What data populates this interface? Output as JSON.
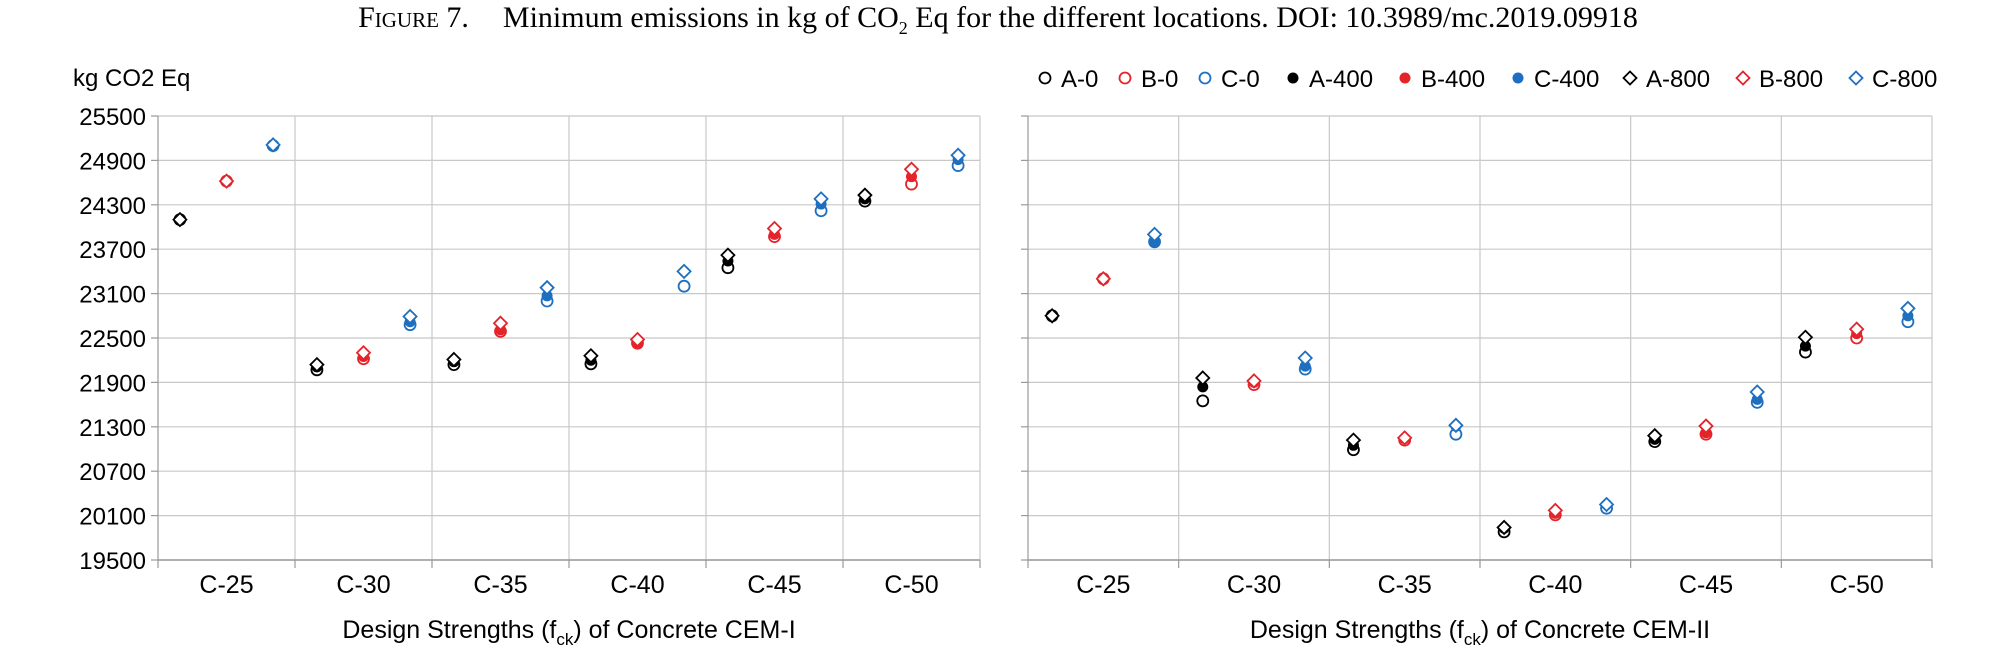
{
  "caption": {
    "label": "Figure 7.",
    "text_before_sub": "Minimum emissions in kg of CO",
    "sub": "2",
    "text_after_sub": " Eq for the different locations. DOI: 10.3989/mc.2019.09918"
  },
  "chart_data": [
    {
      "type": "scatter",
      "panel": "CEM-I",
      "ylabel": "kg CO2 Eq",
      "xlabel_prefix": "Design Strengths (f",
      "xlabel_sub": "ck",
      "xlabel_suffix": ") of Concrete CEM-I",
      "ylim": [
        19500,
        25500
      ],
      "yticks": [
        19500,
        20100,
        20700,
        21300,
        21900,
        22500,
        23100,
        23700,
        24300,
        24900,
        25500
      ],
      "grid": true,
      "categories": [
        "C-25",
        "C-30",
        "C-35",
        "C-40",
        "C-45",
        "C-50"
      ],
      "series": [
        {
          "name": "A-0",
          "values": [
            24100,
            22070,
            22140,
            22150,
            23450,
            24350
          ]
        },
        {
          "name": "B-0",
          "values": [
            24620,
            22220,
            22590,
            22430,
            23870,
            24580
          ]
        },
        {
          "name": "C-0",
          "values": [
            25100,
            22680,
            23000,
            23200,
            24220,
            24830
          ]
        },
        {
          "name": "A-400",
          "values": [
            24100,
            22110,
            22180,
            22200,
            23540,
            24380
          ]
        },
        {
          "name": "B-400",
          "values": [
            24620,
            22250,
            22610,
            22440,
            23900,
            24680
          ]
        },
        {
          "name": "C-400",
          "values": [
            25110,
            22720,
            23070,
            23400,
            24310,
            24910
          ]
        },
        {
          "name": "A-800",
          "values": [
            24100,
            22140,
            22210,
            22260,
            23620,
            24430
          ]
        },
        {
          "name": "B-800",
          "values": [
            24620,
            22300,
            22700,
            22480,
            23980,
            24780
          ]
        },
        {
          "name": "C-800",
          "values": [
            25110,
            22790,
            23180,
            23400,
            24380,
            24970
          ]
        }
      ]
    },
    {
      "type": "scatter",
      "panel": "CEM-II",
      "xlabel_prefix": "Design Strengths (f",
      "xlabel_sub": "ck",
      "xlabel_suffix": ") of Concrete CEM-II",
      "ylim": [
        19500,
        25500
      ],
      "grid": true,
      "legend_position": "top",
      "categories": [
        "C-25",
        "C-30",
        "C-35",
        "C-40",
        "C-45",
        "C-50"
      ],
      "series": [
        {
          "name": "A-0",
          "values": [
            22800,
            21650,
            20990,
            19880,
            21100,
            22310
          ]
        },
        {
          "name": "B-0",
          "values": [
            23300,
            21870,
            21120,
            20110,
            21200,
            22500
          ]
        },
        {
          "name": "C-0",
          "values": [
            23800,
            22080,
            21200,
            20200,
            21630,
            22720
          ]
        },
        {
          "name": "A-400",
          "values": [
            22800,
            21840,
            21050,
            19930,
            21130,
            22390
          ]
        },
        {
          "name": "B-400",
          "values": [
            23300,
            21900,
            21140,
            20130,
            21220,
            22560
          ]
        },
        {
          "name": "C-400",
          "values": [
            23800,
            22120,
            21310,
            20250,
            21670,
            22800
          ]
        },
        {
          "name": "A-800",
          "values": [
            22800,
            21960,
            21120,
            19940,
            21180,
            22510
          ]
        },
        {
          "name": "B-800",
          "values": [
            23300,
            21920,
            21150,
            20170,
            21310,
            22620
          ]
        },
        {
          "name": "C-800",
          "values": [
            23900,
            22230,
            21320,
            20250,
            21770,
            22900
          ]
        }
      ]
    }
  ],
  "legend": [
    "A-0",
    "B-0",
    "C-0",
    "A-400",
    "B-400",
    "C-400",
    "A-800",
    "B-800",
    "C-800"
  ],
  "colors": {
    "A": "#000000",
    "B": "#e3242b",
    "C": "#1f6fbf"
  },
  "markers": {
    "0": "open-circle",
    "400": "filled-circle",
    "800": "open-diamond"
  }
}
